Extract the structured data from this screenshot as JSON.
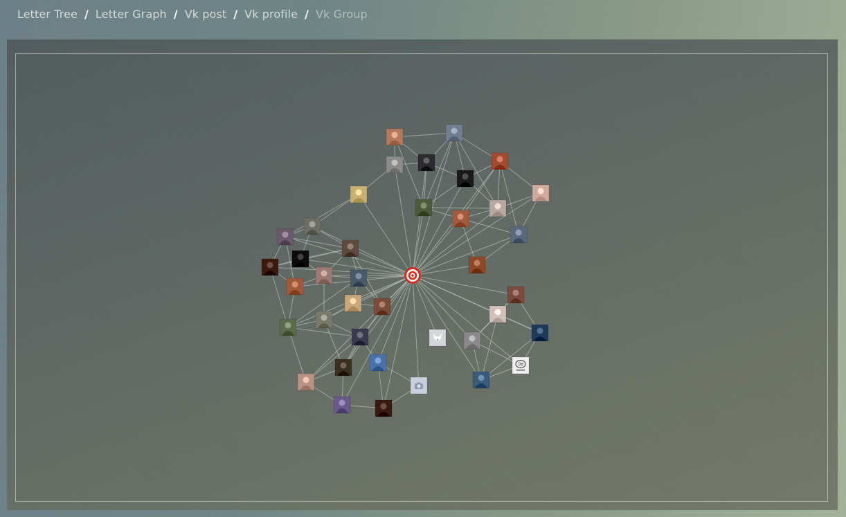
{
  "breadcrumb": {
    "items": [
      {
        "label": "Letter Tree",
        "current": false
      },
      {
        "label": "Letter Graph",
        "current": false
      },
      {
        "label": "Vk post",
        "current": false
      },
      {
        "label": "Vk profile",
        "current": false
      },
      {
        "label": "Vk Group",
        "current": true
      }
    ],
    "separator": "/"
  },
  "colors": {
    "center_target": "#d52b1e",
    "edge": "#d2d6d2",
    "page_bg": "#7d8f88",
    "panel_bg": "#5e6763"
  },
  "graph": {
    "center_node": {
      "id": "center",
      "icon": "target-icon"
    },
    "nodes": [
      {
        "id": "n1",
        "icon": "user-avatar",
        "tone": "#b37a5e"
      },
      {
        "id": "n2",
        "icon": "user-avatar",
        "tone": "#6f7e90"
      },
      {
        "id": "n3",
        "icon": "user-avatar",
        "tone": "#8b8c89"
      },
      {
        "id": "n4",
        "icon": "user-avatar",
        "tone": "#2b2b30"
      },
      {
        "id": "n5",
        "icon": "user-avatar",
        "tone": "#a24a32"
      },
      {
        "id": "n6",
        "icon": "user-avatar",
        "tone": "#1a1a1a"
      },
      {
        "id": "n7",
        "icon": "user-avatar",
        "tone": "#c9b070"
      },
      {
        "id": "n8",
        "icon": "user-avatar",
        "tone": "#4f5a3a"
      },
      {
        "id": "n9",
        "icon": "user-avatar",
        "tone": "#d0aa9c"
      },
      {
        "id": "n10",
        "icon": "user-avatar",
        "tone": "#b8a8a0"
      },
      {
        "id": "n11",
        "icon": "user-avatar",
        "tone": "#a35b3e"
      },
      {
        "id": "n12",
        "icon": "user-avatar",
        "tone": "#5a6a7e"
      },
      {
        "id": "n13",
        "icon": "user-avatar",
        "tone": "#6d6e66"
      },
      {
        "id": "n14",
        "icon": "user-avatar",
        "tone": "#6a5a6a"
      },
      {
        "id": "n15",
        "icon": "user-avatar",
        "tone": "#604a3e"
      },
      {
        "id": "n16",
        "icon": "user-avatar",
        "tone": "#8a4a2a"
      },
      {
        "id": "n17",
        "icon": "user-avatar",
        "tone": "#0c0c0c"
      },
      {
        "id": "n18",
        "icon": "user-avatar",
        "tone": "#3a1a0e"
      },
      {
        "id": "n19",
        "icon": "user-avatar",
        "tone": "#a05a3a"
      },
      {
        "id": "n20",
        "icon": "user-avatar",
        "tone": "#9a7a72"
      },
      {
        "id": "n21",
        "icon": "user-avatar",
        "tone": "#4a5a6a"
      },
      {
        "id": "n22",
        "icon": "user-avatar",
        "tone": "#c8a87a"
      },
      {
        "id": "n23",
        "icon": "user-avatar",
        "tone": "#7a4a3a"
      },
      {
        "id": "n24",
        "icon": "user-avatar",
        "tone": "#5a6a4a"
      },
      {
        "id": "n25",
        "icon": "user-avatar",
        "tone": "#7a7a6a"
      },
      {
        "id": "n26",
        "icon": "user-avatar",
        "tone": "#3a3a4e"
      },
      {
        "id": "n27",
        "icon": "user-avatar",
        "tone": "#3a3020"
      },
      {
        "id": "n28",
        "icon": "user-avatar",
        "tone": "#4a72a8"
      },
      {
        "id": "n29",
        "icon": "user-avatar",
        "tone": "#b89282"
      },
      {
        "id": "n30",
        "icon": "camera-placeholder-icon",
        "tone": "#c8d0dc"
      },
      {
        "id": "n31",
        "icon": "user-avatar",
        "tone": "#6a5a8a"
      },
      {
        "id": "n32",
        "icon": "user-avatar",
        "tone": "#3a1a10"
      },
      {
        "id": "n33",
        "icon": "dog-placeholder-icon",
        "tone": "#d4d8dc"
      },
      {
        "id": "n34",
        "icon": "user-avatar",
        "tone": "#7a4a3e"
      },
      {
        "id": "n35",
        "icon": "user-avatar",
        "tone": "#d0c0b8"
      },
      {
        "id": "n36",
        "icon": "user-avatar",
        "tone": "#1e3a5a"
      },
      {
        "id": "n37",
        "icon": "user-avatar",
        "tone": "#8a8a8a"
      },
      {
        "id": "n38",
        "icon": "brain-logo-icon",
        "tone": "#efefef"
      },
      {
        "id": "n39",
        "icon": "user-avatar",
        "tone": "#3a5a7a"
      }
    ],
    "edges": [
      [
        "center",
        "n2"
      ],
      [
        "center",
        "n3"
      ],
      [
        "center",
        "n4"
      ],
      [
        "center",
        "n5"
      ],
      [
        "center",
        "n6"
      ],
      [
        "center",
        "n7"
      ],
      [
        "center",
        "n8"
      ],
      [
        "center",
        "n9"
      ],
      [
        "center",
        "n10"
      ],
      [
        "center",
        "n11"
      ],
      [
        "center",
        "n12"
      ],
      [
        "center",
        "n13"
      ],
      [
        "center",
        "n14"
      ],
      [
        "center",
        "n15"
      ],
      [
        "center",
        "n16"
      ],
      [
        "center",
        "n17"
      ],
      [
        "center",
        "n18"
      ],
      [
        "center",
        "n19"
      ],
      [
        "center",
        "n20"
      ],
      [
        "center",
        "n21"
      ],
      [
        "center",
        "n22"
      ],
      [
        "center",
        "n23"
      ],
      [
        "center",
        "n24"
      ],
      [
        "center",
        "n25"
      ],
      [
        "center",
        "n26"
      ],
      [
        "center",
        "n27"
      ],
      [
        "center",
        "n28"
      ],
      [
        "center",
        "n29"
      ],
      [
        "center",
        "n30"
      ],
      [
        "center",
        "n31"
      ],
      [
        "center",
        "n32"
      ],
      [
        "center",
        "n33"
      ],
      [
        "center",
        "n34"
      ],
      [
        "center",
        "n35"
      ],
      [
        "center",
        "n36"
      ],
      [
        "center",
        "n37"
      ],
      [
        "center",
        "n38"
      ],
      [
        "center",
        "n39"
      ],
      [
        "n1",
        "n2"
      ],
      [
        "n1",
        "n4"
      ],
      [
        "n1",
        "n8"
      ],
      [
        "n2",
        "n4"
      ],
      [
        "n2",
        "n5"
      ],
      [
        "n2",
        "n6"
      ],
      [
        "n2",
        "n8"
      ],
      [
        "n2",
        "n10"
      ],
      [
        "n3",
        "n1"
      ],
      [
        "n3",
        "n4"
      ],
      [
        "n3",
        "n7"
      ],
      [
        "n4",
        "n8"
      ],
      [
        "n4",
        "n6"
      ],
      [
        "n5",
        "n6"
      ],
      [
        "n5",
        "n9"
      ],
      [
        "n5",
        "n10"
      ],
      [
        "n5",
        "n11"
      ],
      [
        "n5",
        "n12"
      ],
      [
        "n6",
        "n8"
      ],
      [
        "n6",
        "n10"
      ],
      [
        "n8",
        "n10"
      ],
      [
        "n8",
        "n11"
      ],
      [
        "n9",
        "n10"
      ],
      [
        "n9",
        "n12"
      ],
      [
        "n10",
        "n11"
      ],
      [
        "n11",
        "n12"
      ],
      [
        "n11",
        "n16"
      ],
      [
        "n12",
        "n16"
      ],
      [
        "n7",
        "n13"
      ],
      [
        "n7",
        "n14"
      ],
      [
        "n13",
        "n14"
      ],
      [
        "n13",
        "n15"
      ],
      [
        "n13",
        "n17"
      ],
      [
        "n14",
        "n15"
      ],
      [
        "n14",
        "n18"
      ],
      [
        "n14",
        "n19"
      ],
      [
        "n15",
        "n17"
      ],
      [
        "n15",
        "n20"
      ],
      [
        "n15",
        "n21"
      ],
      [
        "n15",
        "n23"
      ],
      [
        "n17",
        "n18"
      ],
      [
        "n17",
        "n20"
      ],
      [
        "n18",
        "n19"
      ],
      [
        "n18",
        "n24"
      ],
      [
        "n19",
        "n20"
      ],
      [
        "n19",
        "n24"
      ],
      [
        "n20",
        "n21"
      ],
      [
        "n20",
        "n25"
      ],
      [
        "n21",
        "n22"
      ],
      [
        "n21",
        "n23"
      ],
      [
        "n22",
        "n23"
      ],
      [
        "n22",
        "n25"
      ],
      [
        "n23",
        "n27"
      ],
      [
        "n24",
        "n25"
      ],
      [
        "n24",
        "n26"
      ],
      [
        "n24",
        "n29"
      ],
      [
        "n25",
        "n26"
      ],
      [
        "n25",
        "n27"
      ],
      [
        "n26",
        "n27"
      ],
      [
        "n26",
        "n28"
      ],
      [
        "n27",
        "n29"
      ],
      [
        "n27",
        "n31"
      ],
      [
        "n28",
        "n30"
      ],
      [
        "n28",
        "n32"
      ],
      [
        "n29",
        "n31"
      ],
      [
        "n31",
        "n32"
      ],
      [
        "n32",
        "n30"
      ],
      [
        "n26",
        "n29"
      ],
      [
        "n21",
        "n24"
      ],
      [
        "n18",
        "n15"
      ],
      [
        "n34",
        "n35"
      ],
      [
        "n34",
        "n36"
      ],
      [
        "n35",
        "n37"
      ],
      [
        "n35",
        "n36"
      ],
      [
        "n36",
        "n38"
      ],
      [
        "n37",
        "n38"
      ],
      [
        "n37",
        "n39"
      ],
      [
        "n38",
        "n39"
      ],
      [
        "n35",
        "n39"
      ],
      [
        "n34",
        "n37"
      ],
      [
        "n36",
        "n39"
      ]
    ]
  }
}
